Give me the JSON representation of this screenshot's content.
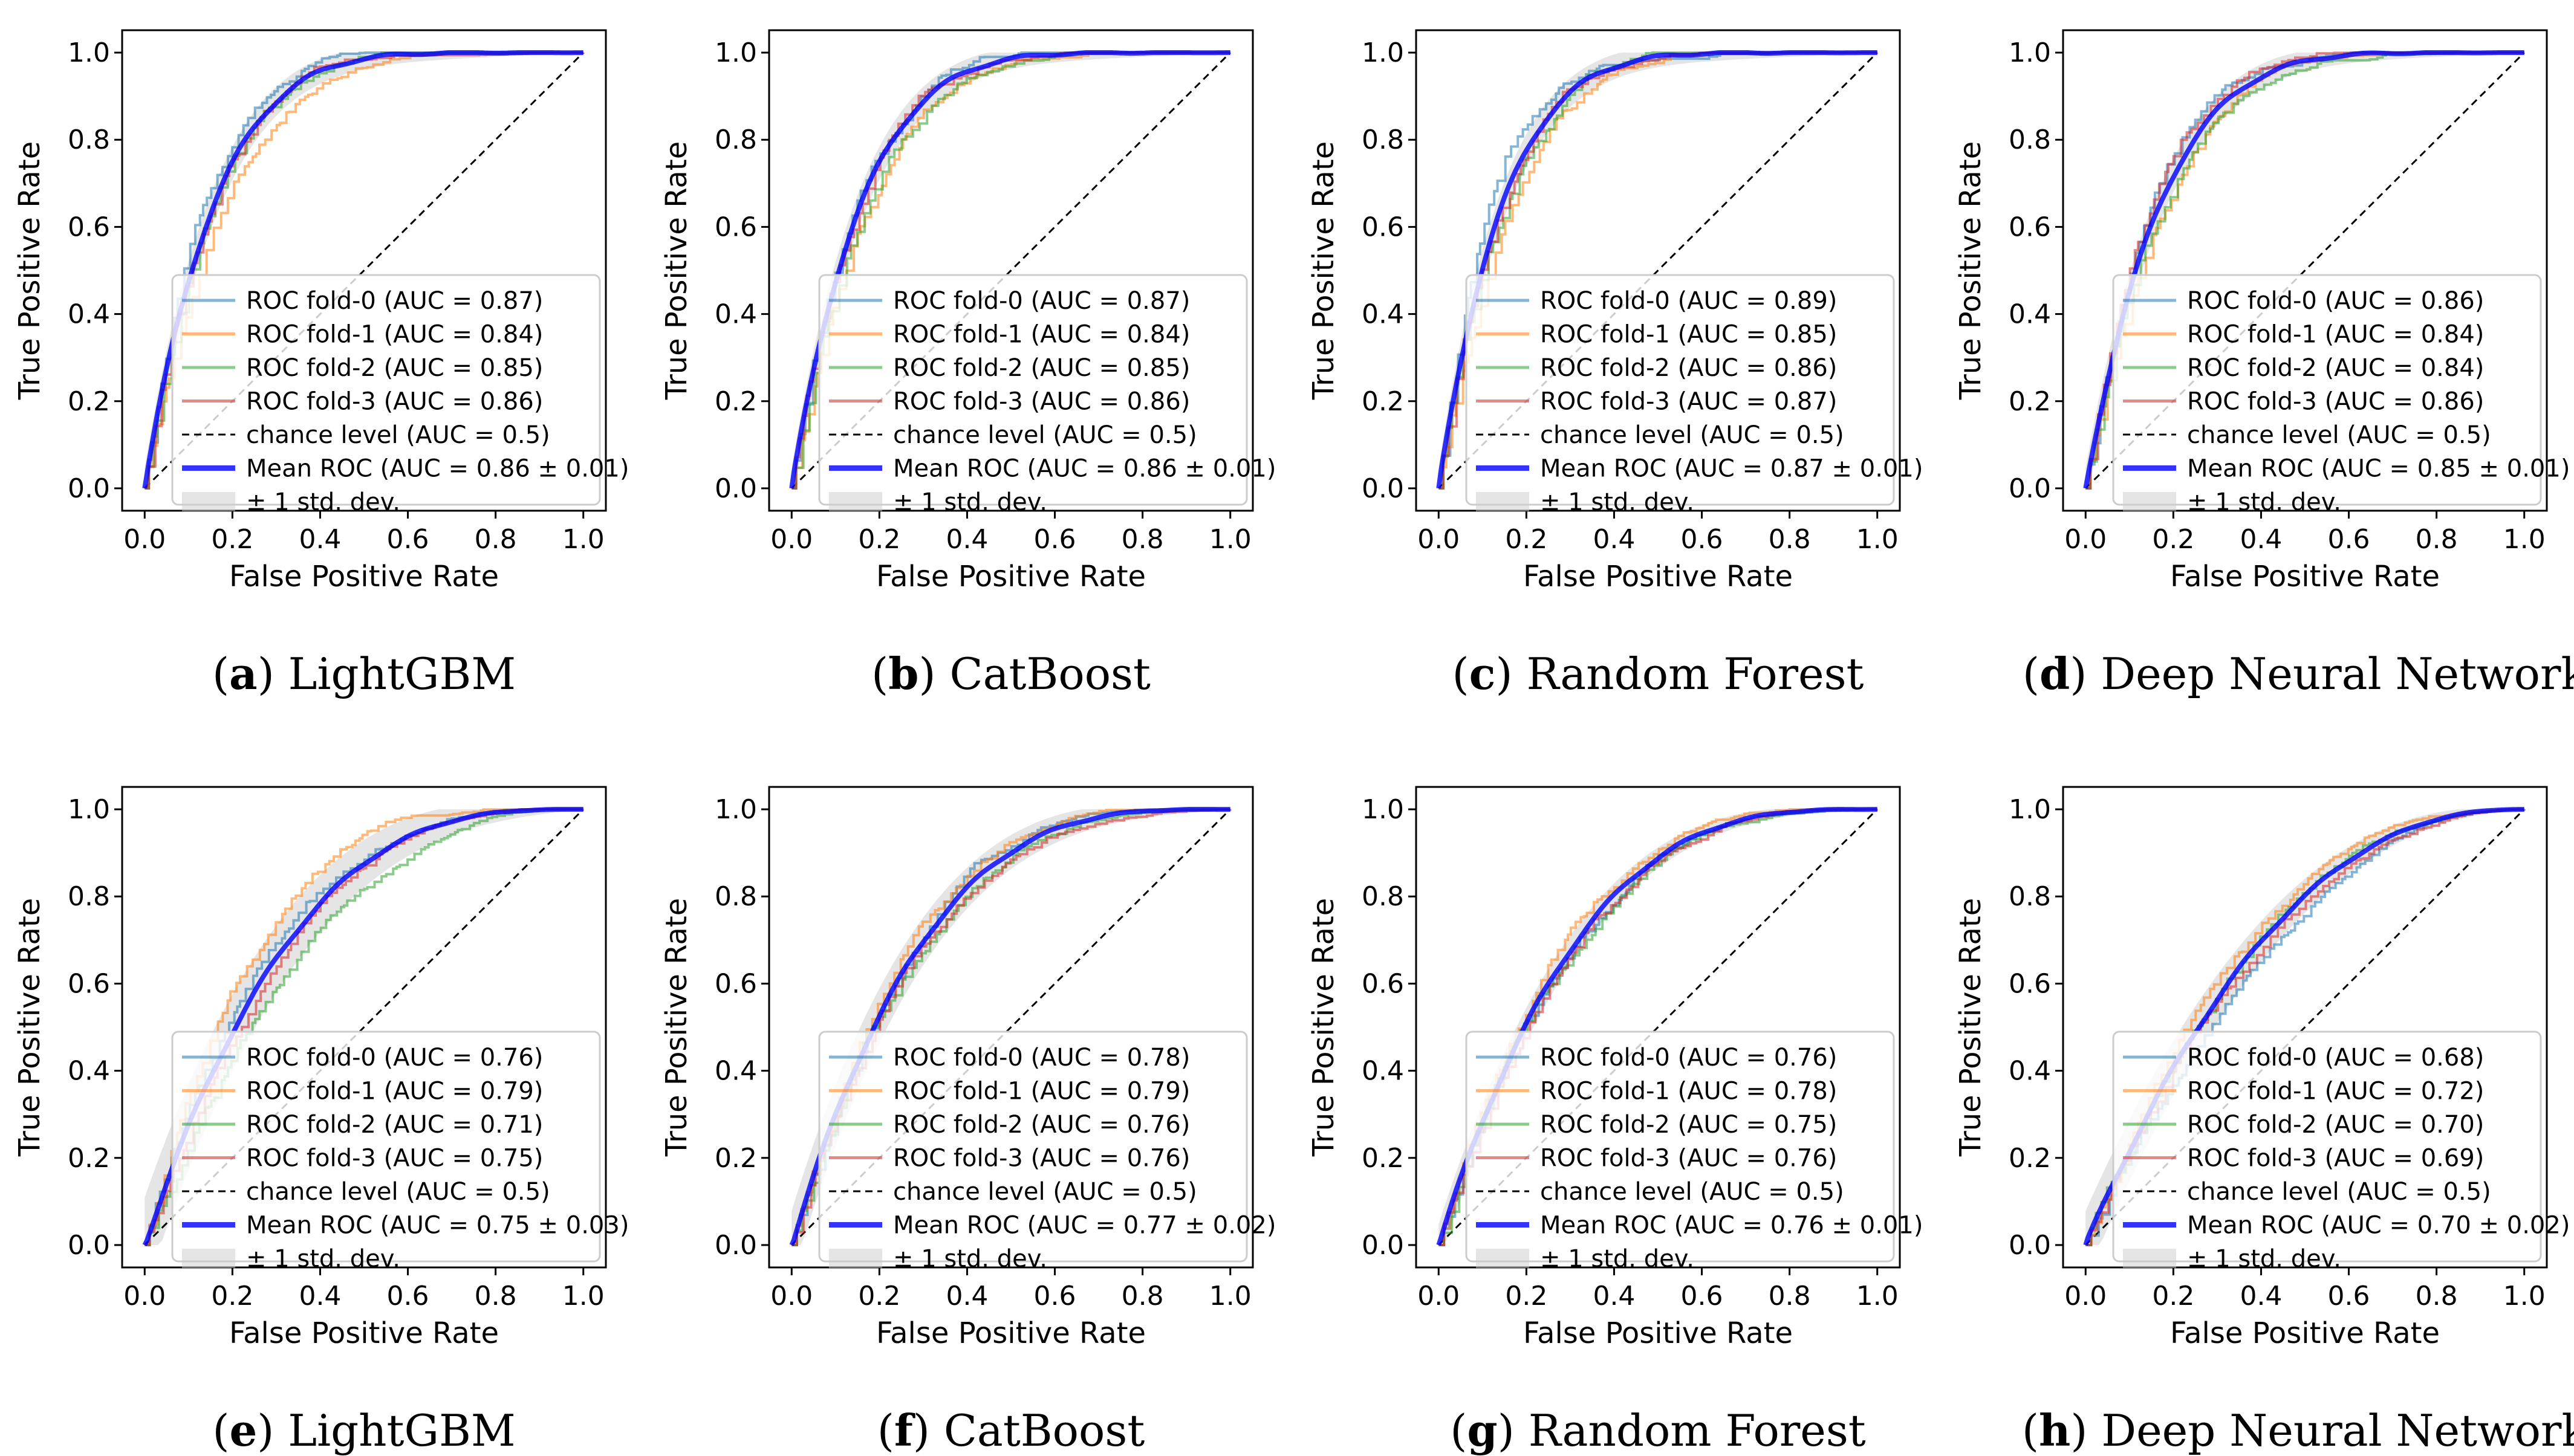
{
  "figure": {
    "panels": [
      {
        "caption_letter": "a",
        "caption_text": "LightGBM",
        "chart_data": {
          "type": "line",
          "title": "",
          "xlabel": "False Positive Rate",
          "ylabel": "True Positive Rate",
          "xlim": [
            0.0,
            1.0
          ],
          "ylim": [
            0.0,
            1.0
          ],
          "x_ticks": [
            "0.0",
            "0.2",
            "0.4",
            "0.6",
            "0.8",
            "1.0"
          ],
          "y_ticks": [
            "0.0",
            "0.2",
            "0.4",
            "0.6",
            "0.8",
            "1.0"
          ],
          "legend_position": "lower-right",
          "series": [
            {
              "name": "ROC fold-0",
              "auc": 0.87,
              "legend_label": "ROC fold-0 (AUC = 0.87)",
              "color": "#1f77b4"
            },
            {
              "name": "ROC fold-1",
              "auc": 0.84,
              "legend_label": "ROC fold-1 (AUC = 0.84)",
              "color": "#ff7f0e"
            },
            {
              "name": "ROC fold-2",
              "auc": 0.85,
              "legend_label": "ROC fold-2 (AUC = 0.85)",
              "color": "#2ca02c"
            },
            {
              "name": "ROC fold-3",
              "auc": 0.86,
              "legend_label": "ROC fold-3 (AUC = 0.86)",
              "color": "#d62728"
            }
          ],
          "chance": {
            "legend_label": "chance level (AUC = 0.5)",
            "auc": 0.5,
            "x": [
              0,
              1
            ],
            "y": [
              0,
              1
            ]
          },
          "mean": {
            "legend_label": "Mean ROC (AUC = 0.86 ± 0.01)",
            "auc": 0.86,
            "std": 0.01,
            "color": "#0000ff"
          },
          "band": {
            "legend_label": "± 1 std. dev.",
            "color": "#cccccc"
          }
        }
      },
      {
        "caption_letter": "b",
        "caption_text": "CatBoost",
        "chart_data": {
          "type": "line",
          "title": "",
          "xlabel": "False Positive Rate",
          "ylabel": "True Positive Rate",
          "xlim": [
            0.0,
            1.0
          ],
          "ylim": [
            0.0,
            1.0
          ],
          "x_ticks": [
            "0.0",
            "0.2",
            "0.4",
            "0.6",
            "0.8",
            "1.0"
          ],
          "y_ticks": [
            "0.0",
            "0.2",
            "0.4",
            "0.6",
            "0.8",
            "1.0"
          ],
          "legend_position": "lower-right",
          "series": [
            {
              "name": "ROC fold-0",
              "auc": 0.87,
              "legend_label": "ROC fold-0 (AUC = 0.87)",
              "color": "#1f77b4"
            },
            {
              "name": "ROC fold-1",
              "auc": 0.84,
              "legend_label": "ROC fold-1 (AUC = 0.84)",
              "color": "#ff7f0e"
            },
            {
              "name": "ROC fold-2",
              "auc": 0.85,
              "legend_label": "ROC fold-2 (AUC = 0.85)",
              "color": "#2ca02c"
            },
            {
              "name": "ROC fold-3",
              "auc": 0.86,
              "legend_label": "ROC fold-3 (AUC = 0.86)",
              "color": "#d62728"
            }
          ],
          "chance": {
            "legend_label": "chance level (AUC = 0.5)",
            "auc": 0.5,
            "x": [
              0,
              1
            ],
            "y": [
              0,
              1
            ]
          },
          "mean": {
            "legend_label": "Mean ROC (AUC = 0.86 ± 0.01)",
            "auc": 0.86,
            "std": 0.01,
            "color": "#0000ff"
          },
          "band": {
            "legend_label": "± 1 std. dev.",
            "color": "#cccccc"
          }
        }
      },
      {
        "caption_letter": "c",
        "caption_text": "Random Forest",
        "chart_data": {
          "type": "line",
          "title": "",
          "xlabel": "False Positive Rate",
          "ylabel": "True Positive Rate",
          "xlim": [
            0.0,
            1.0
          ],
          "ylim": [
            0.0,
            1.0
          ],
          "x_ticks": [
            "0.0",
            "0.2",
            "0.4",
            "0.6",
            "0.8",
            "1.0"
          ],
          "y_ticks": [
            "0.0",
            "0.2",
            "0.4",
            "0.6",
            "0.8",
            "1.0"
          ],
          "legend_position": "lower-right",
          "series": [
            {
              "name": "ROC fold-0",
              "auc": 0.89,
              "legend_label": "ROC fold-0 (AUC = 0.89)",
              "color": "#1f77b4"
            },
            {
              "name": "ROC fold-1",
              "auc": 0.85,
              "legend_label": "ROC fold-1 (AUC = 0.85)",
              "color": "#ff7f0e"
            },
            {
              "name": "ROC fold-2",
              "auc": 0.86,
              "legend_label": "ROC fold-2 (AUC = 0.86)",
              "color": "#2ca02c"
            },
            {
              "name": "ROC fold-3",
              "auc": 0.87,
              "legend_label": "ROC fold-3 (AUC = 0.87)",
              "color": "#d62728"
            }
          ],
          "chance": {
            "legend_label": "chance level (AUC = 0.5)",
            "auc": 0.5,
            "x": [
              0,
              1
            ],
            "y": [
              0,
              1
            ]
          },
          "mean": {
            "legend_label": "Mean ROC (AUC = 0.87 ± 0.01)",
            "auc": 0.87,
            "std": 0.01,
            "color": "#0000ff"
          },
          "band": {
            "legend_label": "± 1 std. dev.",
            "color": "#cccccc"
          }
        }
      },
      {
        "caption_letter": "d",
        "caption_text": "Deep Neural Network",
        "chart_data": {
          "type": "line",
          "title": "",
          "xlabel": "False Positive Rate",
          "ylabel": "True Positive Rate",
          "xlim": [
            0.0,
            1.0
          ],
          "ylim": [
            0.0,
            1.0
          ],
          "x_ticks": [
            "0.0",
            "0.2",
            "0.4",
            "0.6",
            "0.8",
            "1.0"
          ],
          "y_ticks": [
            "0.0",
            "0.2",
            "0.4",
            "0.6",
            "0.8",
            "1.0"
          ],
          "legend_position": "lower-right",
          "series": [
            {
              "name": "ROC fold-0",
              "auc": 0.86,
              "legend_label": "ROC fold-0 (AUC = 0.86)",
              "color": "#1f77b4"
            },
            {
              "name": "ROC fold-1",
              "auc": 0.84,
              "legend_label": "ROC fold-1 (AUC = 0.84)",
              "color": "#ff7f0e"
            },
            {
              "name": "ROC fold-2",
              "auc": 0.84,
              "legend_label": "ROC fold-2 (AUC = 0.84)",
              "color": "#2ca02c"
            },
            {
              "name": "ROC fold-3",
              "auc": 0.86,
              "legend_label": "ROC fold-3 (AUC = 0.86)",
              "color": "#d62728"
            }
          ],
          "chance": {
            "legend_label": "chance level (AUC = 0.5)",
            "auc": 0.5,
            "x": [
              0,
              1
            ],
            "y": [
              0,
              1
            ]
          },
          "mean": {
            "legend_label": "Mean ROC (AUC = 0.85 ± 0.01)",
            "auc": 0.85,
            "std": 0.01,
            "color": "#0000ff"
          },
          "band": {
            "legend_label": "± 1 std. dev.",
            "color": "#cccccc"
          }
        }
      },
      {
        "caption_letter": "e",
        "caption_text": "LightGBM",
        "chart_data": {
          "type": "line",
          "title": "",
          "xlabel": "False Positive Rate",
          "ylabel": "True Positive Rate",
          "xlim": [
            0.0,
            1.0
          ],
          "ylim": [
            0.0,
            1.0
          ],
          "x_ticks": [
            "0.0",
            "0.2",
            "0.4",
            "0.6",
            "0.8",
            "1.0"
          ],
          "y_ticks": [
            "0.0",
            "0.2",
            "0.4",
            "0.6",
            "0.8",
            "1.0"
          ],
          "legend_position": "lower-right",
          "series": [
            {
              "name": "ROC fold-0",
              "auc": 0.76,
              "legend_label": "ROC fold-0 (AUC = 0.76)",
              "color": "#1f77b4"
            },
            {
              "name": "ROC fold-1",
              "auc": 0.79,
              "legend_label": "ROC fold-1 (AUC = 0.79)",
              "color": "#ff7f0e"
            },
            {
              "name": "ROC fold-2",
              "auc": 0.71,
              "legend_label": "ROC fold-2 (AUC = 0.71)",
              "color": "#2ca02c"
            },
            {
              "name": "ROC fold-3",
              "auc": 0.75,
              "legend_label": "ROC fold-3 (AUC = 0.75)",
              "color": "#d62728"
            }
          ],
          "chance": {
            "legend_label": "chance level (AUC = 0.5)",
            "auc": 0.5,
            "x": [
              0,
              1
            ],
            "y": [
              0,
              1
            ]
          },
          "mean": {
            "legend_label": "Mean ROC (AUC = 0.75 ± 0.03)",
            "auc": 0.75,
            "std": 0.03,
            "color": "#0000ff"
          },
          "band": {
            "legend_label": "± 1 std. dev.",
            "color": "#cccccc"
          }
        }
      },
      {
        "caption_letter": "f",
        "caption_text": "CatBoost",
        "chart_data": {
          "type": "line",
          "title": "",
          "xlabel": "False Positive Rate",
          "ylabel": "True Positive Rate",
          "xlim": [
            0.0,
            1.0
          ],
          "ylim": [
            0.0,
            1.0
          ],
          "x_ticks": [
            "0.0",
            "0.2",
            "0.4",
            "0.6",
            "0.8",
            "1.0"
          ],
          "y_ticks": [
            "0.0",
            "0.2",
            "0.4",
            "0.6",
            "0.8",
            "1.0"
          ],
          "legend_position": "lower-right",
          "series": [
            {
              "name": "ROC fold-0",
              "auc": 0.78,
              "legend_label": "ROC fold-0 (AUC = 0.78)",
              "color": "#1f77b4"
            },
            {
              "name": "ROC fold-1",
              "auc": 0.79,
              "legend_label": "ROC fold-1 (AUC = 0.79)",
              "color": "#ff7f0e"
            },
            {
              "name": "ROC fold-2",
              "auc": 0.76,
              "legend_label": "ROC fold-2 (AUC = 0.76)",
              "color": "#2ca02c"
            },
            {
              "name": "ROC fold-3",
              "auc": 0.76,
              "legend_label": "ROC fold-3 (AUC = 0.76)",
              "color": "#d62728"
            }
          ],
          "chance": {
            "legend_label": "chance level (AUC = 0.5)",
            "auc": 0.5,
            "x": [
              0,
              1
            ],
            "y": [
              0,
              1
            ]
          },
          "mean": {
            "legend_label": "Mean ROC (AUC = 0.77 ± 0.02)",
            "auc": 0.77,
            "std": 0.02,
            "color": "#0000ff"
          },
          "band": {
            "legend_label": "± 1 std. dev.",
            "color": "#cccccc"
          }
        }
      },
      {
        "caption_letter": "g",
        "caption_text": "Random Forest",
        "chart_data": {
          "type": "line",
          "title": "",
          "xlabel": "False Positive Rate",
          "ylabel": "True Positive Rate",
          "xlim": [
            0.0,
            1.0
          ],
          "ylim": [
            0.0,
            1.0
          ],
          "x_ticks": [
            "0.0",
            "0.2",
            "0.4",
            "0.6",
            "0.8",
            "1.0"
          ],
          "y_ticks": [
            "0.0",
            "0.2",
            "0.4",
            "0.6",
            "0.8",
            "1.0"
          ],
          "legend_position": "lower-right",
          "series": [
            {
              "name": "ROC fold-0",
              "auc": 0.76,
              "legend_label": "ROC fold-0 (AUC = 0.76)",
              "color": "#1f77b4"
            },
            {
              "name": "ROC fold-1",
              "auc": 0.78,
              "legend_label": "ROC fold-1 (AUC = 0.78)",
              "color": "#ff7f0e"
            },
            {
              "name": "ROC fold-2",
              "auc": 0.75,
              "legend_label": "ROC fold-2 (AUC = 0.75)",
              "color": "#2ca02c"
            },
            {
              "name": "ROC fold-3",
              "auc": 0.76,
              "legend_label": "ROC fold-3 (AUC = 0.76)",
              "color": "#d62728"
            }
          ],
          "chance": {
            "legend_label": "chance level (AUC = 0.5)",
            "auc": 0.5,
            "x": [
              0,
              1
            ],
            "y": [
              0,
              1
            ]
          },
          "mean": {
            "legend_label": "Mean ROC (AUC = 0.76 ± 0.01)",
            "auc": 0.76,
            "std": 0.01,
            "color": "#0000ff"
          },
          "band": {
            "legend_label": "± 1 std. dev.",
            "color": "#cccccc"
          }
        }
      },
      {
        "caption_letter": "h",
        "caption_text": "Deep Neural Network",
        "chart_data": {
          "type": "line",
          "title": "",
          "xlabel": "False Positive Rate",
          "ylabel": "True Positive Rate",
          "xlim": [
            0.0,
            1.0
          ],
          "ylim": [
            0.0,
            1.0
          ],
          "x_ticks": [
            "0.0",
            "0.2",
            "0.4",
            "0.6",
            "0.8",
            "1.0"
          ],
          "y_ticks": [
            "0.0",
            "0.2",
            "0.4",
            "0.6",
            "0.8",
            "1.0"
          ],
          "legend_position": "lower-right",
          "series": [
            {
              "name": "ROC fold-0",
              "auc": 0.68,
              "legend_label": "ROC fold-0 (AUC = 0.68)",
              "color": "#1f77b4"
            },
            {
              "name": "ROC fold-1",
              "auc": 0.72,
              "legend_label": "ROC fold-1 (AUC = 0.72)",
              "color": "#ff7f0e"
            },
            {
              "name": "ROC fold-2",
              "auc": 0.7,
              "legend_label": "ROC fold-2 (AUC = 0.70)",
              "color": "#2ca02c"
            },
            {
              "name": "ROC fold-3",
              "auc": 0.69,
              "legend_label": "ROC fold-3 (AUC = 0.69)",
              "color": "#d62728"
            }
          ],
          "chance": {
            "legend_label": "chance level (AUC = 0.5)",
            "auc": 0.5,
            "x": [
              0,
              1
            ],
            "y": [
              0,
              1
            ]
          },
          "mean": {
            "legend_label": "Mean ROC (AUC = 0.70 ± 0.02)",
            "auc": 0.7,
            "std": 0.02,
            "color": "#0000ff"
          },
          "band": {
            "legend_label": "± 1 std. dev.",
            "color": "#cccccc"
          }
        }
      }
    ]
  }
}
